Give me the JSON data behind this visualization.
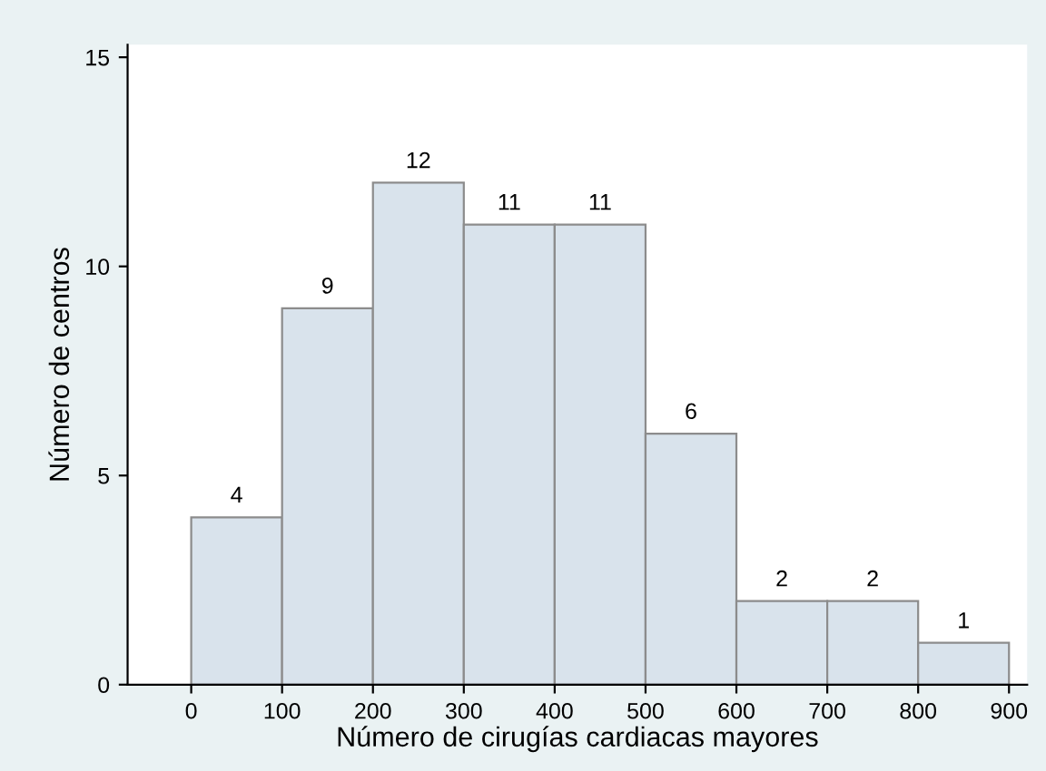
{
  "chart_data": {
    "type": "histogram",
    "xlabel": "Número de cirugías cardiacas mayores",
    "ylabel": "Número de centros",
    "bins": [
      0,
      100,
      200,
      300,
      400,
      500,
      600,
      700,
      800,
      900
    ],
    "values": [
      4,
      9,
      12,
      11,
      11,
      6,
      2,
      2,
      1
    ],
    "color": "#d9e3ec",
    "xlim": [
      -70,
      920
    ],
    "xticks": [
      0,
      100,
      200,
      300,
      400,
      500,
      600,
      700,
      800,
      900
    ],
    "ylim": [
      0,
      15.3
    ],
    "yticks": [
      0,
      5,
      10,
      15
    ],
    "data_labels": true,
    "grid": false
  }
}
